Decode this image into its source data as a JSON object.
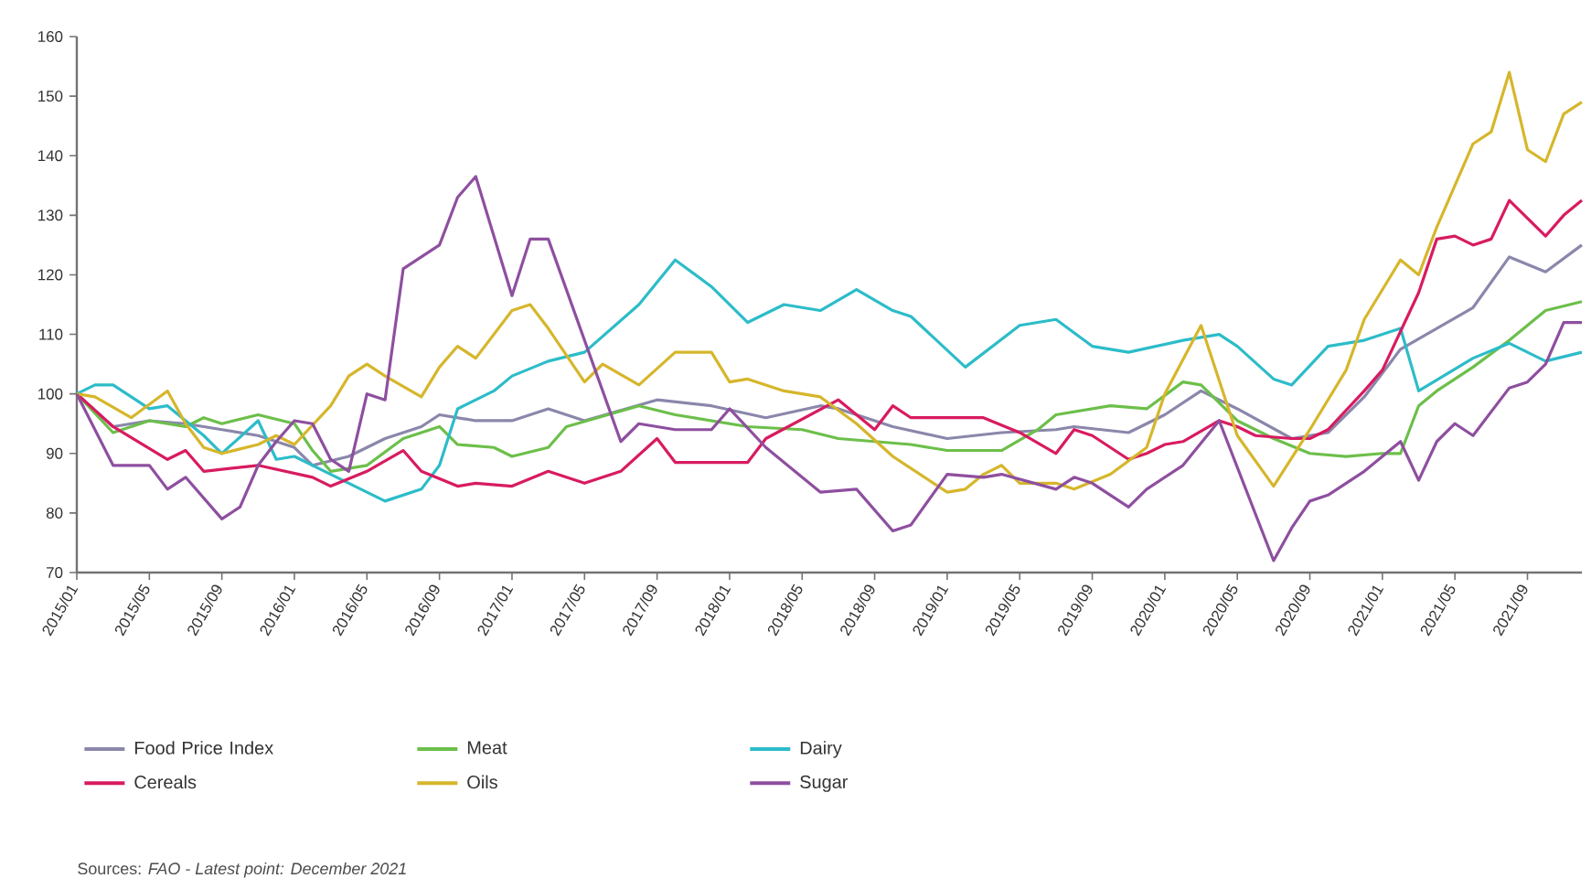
{
  "chart_data": {
    "type": "line",
    "xlim": [
      "2015-01",
      "2021-12"
    ],
    "xticks": [
      {
        "value": "2015-01",
        "label": "2015/01"
      },
      {
        "value": "2015-05",
        "label": "2015/05"
      },
      {
        "value": "2015-09",
        "label": "2015/09"
      },
      {
        "value": "2016-01",
        "label": "2016/01"
      },
      {
        "value": "2016-05",
        "label": "2016/05"
      },
      {
        "value": "2016-09",
        "label": "2016/09"
      },
      {
        "value": "2017-01",
        "label": "2017/01"
      },
      {
        "value": "2017-05",
        "label": "2017/05"
      },
      {
        "value": "2017-09",
        "label": "2017/09"
      },
      {
        "value": "2018-01",
        "label": "2018/01"
      },
      {
        "value": "2018-05",
        "label": "2018/05"
      },
      {
        "value": "2018-09",
        "label": "2018/09"
      },
      {
        "value": "2019-01",
        "label": "2019/01"
      },
      {
        "value": "2019-05",
        "label": "2019/05"
      },
      {
        "value": "2019-09",
        "label": "2019/09"
      },
      {
        "value": "2020-01",
        "label": "2020/01"
      },
      {
        "value": "2020-05",
        "label": "2020/05"
      },
      {
        "value": "2020-09",
        "label": "2020/09"
      },
      {
        "value": "2021-01",
        "label": "2021/01"
      },
      {
        "value": "2021-05",
        "label": "2021/05"
      },
      {
        "value": "2021-09",
        "label": "2021/09"
      }
    ],
    "ylim": [
      70,
      160
    ],
    "yticks": [
      70,
      80,
      90,
      100,
      110,
      120,
      130,
      140,
      150,
      160
    ],
    "legend": "bottom",
    "line_style": "solid",
    "annotations": [
      "Sources: *FAO - Latest point: December 2021*"
    ],
    "series": [
      {
        "name": "Food Price Index",
        "color": "#8a87ab",
        "x": [
          "2015-01",
          "2015-03",
          "2015-05",
          "2015-07",
          "2015-09",
          "2015-11",
          "2016-01",
          "2016-02",
          "2016-04",
          "2016-06",
          "2016-08",
          "2016-09",
          "2016-11",
          "2017-01",
          "2017-03",
          "2017-05",
          "2017-09",
          "2017-12",
          "2018-03",
          "2018-06",
          "2018-07",
          "2018-10",
          "2019-01",
          "2019-04",
          "2019-07",
          "2019-08",
          "2019-11",
          "2020-01",
          "2020-03",
          "2020-05",
          "2020-08",
          "2020-10",
          "2020-12",
          "2021-02",
          "2021-06",
          "2021-08",
          "2021-10",
          "2021-12"
        ],
        "values": [
          100,
          94.5,
          95.5,
          95,
          94,
          93,
          91,
          88,
          89.5,
          92.5,
          94.5,
          96.5,
          95.5,
          95.5,
          97.5,
          95.5,
          99,
          98,
          96,
          98,
          97.5,
          94.5,
          92.5,
          93.5,
          94,
          94.5,
          93.5,
          96.5,
          100.5,
          97.5,
          92.5,
          93.5,
          99.5,
          107.5,
          114.5,
          123,
          120.5,
          125
        ]
      },
      {
        "name": "Meat",
        "color": "#6cbf4a",
        "x": [
          "2015-01",
          "2015-03",
          "2015-05",
          "2015-07",
          "2015-08",
          "2015-09",
          "2015-11",
          "2016-01",
          "2016-02",
          "2016-03",
          "2016-04",
          "2016-05",
          "2016-07",
          "2016-09",
          "2016-10",
          "2016-12",
          "2017-01",
          "2017-03",
          "2017-04",
          "2017-08",
          "2017-10",
          "2018-02",
          "2018-05",
          "2018-07",
          "2018-11",
          "2019-01",
          "2019-04",
          "2019-06",
          "2019-07",
          "2019-10",
          "2019-12",
          "2020-02",
          "2020-03",
          "2020-05",
          "2020-07",
          "2020-09",
          "2020-11",
          "2021-01",
          "2021-02",
          "2021-03",
          "2021-04",
          "2021-06",
          "2021-08",
          "2021-10",
          "2021-12"
        ],
        "values": [
          100,
          93.5,
          95.5,
          94.5,
          96,
          95,
          96.5,
          95,
          90.5,
          87,
          87.5,
          88,
          92.5,
          94.5,
          91.5,
          91,
          89.5,
          91,
          94.5,
          98,
          96.5,
          94.5,
          94,
          92.5,
          91.5,
          90.5,
          90.5,
          94,
          96.5,
          98,
          97.5,
          102,
          101.5,
          95.5,
          92.5,
          90,
          89.5,
          90,
          90,
          98,
          100.5,
          104.5,
          109,
          114,
          115.5
        ]
      },
      {
        "name": "Dairy",
        "color": "#2cbcc9",
        "x": [
          "2015-01",
          "2015-02",
          "2015-03",
          "2015-05",
          "2015-06",
          "2015-08",
          "2015-09",
          "2015-11",
          "2015-12",
          "2016-01",
          "2016-03",
          "2016-06",
          "2016-08",
          "2016-09",
          "2016-10",
          "2016-12",
          "2017-01",
          "2017-03",
          "2017-05",
          "2017-08",
          "2017-10",
          "2017-12",
          "2018-02",
          "2018-04",
          "2018-06",
          "2018-08",
          "2018-10",
          "2018-11",
          "2019-02",
          "2019-05",
          "2019-07",
          "2019-09",
          "2019-11",
          "2020-02",
          "2020-04",
          "2020-05",
          "2020-07",
          "2020-08",
          "2020-10",
          "2020-12",
          "2021-02",
          "2021-03",
          "2021-06",
          "2021-08",
          "2021-10",
          "2021-12"
        ],
        "values": [
          100,
          101.5,
          101.5,
          97.5,
          98,
          93,
          90,
          95.5,
          89,
          89.5,
          86.5,
          82,
          84,
          88,
          97.5,
          100.5,
          103,
          105.5,
          107,
          115,
          122.5,
          118,
          112,
          115,
          114,
          117.5,
          114,
          113,
          104.5,
          111.5,
          112.5,
          108,
          107,
          109,
          110,
          108,
          102.5,
          101.5,
          108,
          109,
          111,
          100.5,
          106,
          108.5,
          105.5,
          107
        ]
      },
      {
        "name": "Cereals",
        "color": "#d81b60",
        "x": [
          "2015-01",
          "2015-03",
          "2015-06",
          "2015-07",
          "2015-08",
          "2015-11",
          "2016-02",
          "2016-03",
          "2016-05",
          "2016-07",
          "2016-08",
          "2016-10",
          "2016-11",
          "2017-01",
          "2017-03",
          "2017-05",
          "2017-07",
          "2017-09",
          "2017-10",
          "2018-02",
          "2018-03",
          "2018-07",
          "2018-09",
          "2018-10",
          "2018-11",
          "2019-03",
          "2019-05",
          "2019-07",
          "2019-08",
          "2019-09",
          "2019-11",
          "2019-12",
          "2020-01",
          "2020-02",
          "2020-04",
          "2020-05",
          "2020-06",
          "2020-08",
          "2020-09",
          "2020-10",
          "2020-12",
          "2021-01",
          "2021-03",
          "2021-04",
          "2021-05",
          "2021-06",
          "2021-07",
          "2021-08",
          "2021-10",
          "2021-11",
          "2021-12"
        ],
        "values": [
          100,
          94.5,
          89,
          90.5,
          87,
          88,
          86,
          84.5,
          87,
          90.5,
          87,
          84.5,
          85,
          84.5,
          87,
          85,
          87,
          92.5,
          88.5,
          88.5,
          92.5,
          99,
          94,
          98,
          96,
          96,
          93.5,
          90,
          94,
          93,
          89,
          90,
          91.5,
          92,
          95.5,
          94.5,
          93,
          92.5,
          92.5,
          94,
          100.5,
          104,
          117,
          126,
          126.5,
          125,
          126,
          132.5,
          126.5,
          130,
          132.5
        ]
      },
      {
        "name": "Oils",
        "color": "#d6b62b",
        "x": [
          "2015-01",
          "2015-02",
          "2015-04",
          "2015-06",
          "2015-07",
          "2015-08",
          "2015-09",
          "2015-11",
          "2015-12",
          "2016-01",
          "2016-03",
          "2016-04",
          "2016-05",
          "2016-06",
          "2016-08",
          "2016-09",
          "2016-10",
          "2016-11",
          "2017-01",
          "2017-02",
          "2017-03",
          "2017-05",
          "2017-06",
          "2017-08",
          "2017-10",
          "2017-12",
          "2018-01",
          "2018-02",
          "2018-04",
          "2018-05",
          "2018-06",
          "2018-08",
          "2018-10",
          "2019-01",
          "2019-02",
          "2019-03",
          "2019-04",
          "2019-05",
          "2019-07",
          "2019-08",
          "2019-10",
          "2019-12",
          "2020-01",
          "2020-03",
          "2020-05",
          "2020-07",
          "2020-09",
          "2020-11",
          "2020-12",
          "2021-02",
          "2021-03",
          "2021-04",
          "2021-06",
          "2021-07",
          "2021-08",
          "2021-09",
          "2021-10",
          "2021-11",
          "2021-12"
        ],
        "values": [
          100,
          99.5,
          96,
          100.5,
          95,
          91,
          90,
          91.5,
          93,
          91.5,
          98,
          103,
          105,
          103,
          99.5,
          104.5,
          108,
          106,
          114,
          115,
          111,
          102,
          105,
          101.5,
          107,
          107,
          102,
          102.5,
          100.5,
          100,
          99.5,
          95,
          89.5,
          83.5,
          84,
          86.5,
          88,
          85,
          85,
          84,
          86.5,
          91,
          100,
          111.5,
          93,
          84.5,
          94,
          104,
          112.5,
          122.5,
          120,
          128,
          142,
          144,
          154,
          141,
          139,
          147,
          149
        ]
      },
      {
        "name": "Sugar",
        "color": "#8e4f9f",
        "x": [
          "2015-01",
          "2015-03",
          "2015-05",
          "2015-06",
          "2015-07",
          "2015-09",
          "2015-10",
          "2015-11",
          "2015-12",
          "2016-01",
          "2016-02",
          "2016-03",
          "2016-04",
          "2016-05",
          "2016-06",
          "2016-07",
          "2016-08",
          "2016-09",
          "2016-10",
          "2016-11",
          "2017-01",
          "2017-02",
          "2017-03",
          "2017-07",
          "2017-08",
          "2017-10",
          "2017-12",
          "2018-01",
          "2018-03",
          "2018-06",
          "2018-08",
          "2018-10",
          "2018-11",
          "2019-01",
          "2019-03",
          "2019-04",
          "2019-07",
          "2019-08",
          "2019-09",
          "2019-11",
          "2019-12",
          "2020-02",
          "2020-04",
          "2020-07",
          "2020-08",
          "2020-09",
          "2020-10",
          "2020-12",
          "2021-02",
          "2021-03",
          "2021-04",
          "2021-05",
          "2021-06",
          "2021-08",
          "2021-09",
          "2021-10",
          "2021-11",
          "2021-12"
        ],
        "values": [
          100,
          88,
          88,
          84,
          86,
          79,
          81,
          88,
          92,
          95.5,
          95,
          89,
          87,
          100,
          99,
          121,
          123,
          125,
          133,
          136.5,
          116.5,
          126,
          126,
          92,
          95,
          94,
          94,
          97.5,
          91,
          83.5,
          84,
          77,
          78,
          86.5,
          86,
          86.5,
          84,
          86,
          85,
          81,
          84,
          88,
          95.5,
          72,
          77.5,
          82,
          83,
          87,
          92,
          85.5,
          92,
          95,
          93,
          101,
          102,
          105,
          112,
          112
        ]
      }
    ]
  }
}
